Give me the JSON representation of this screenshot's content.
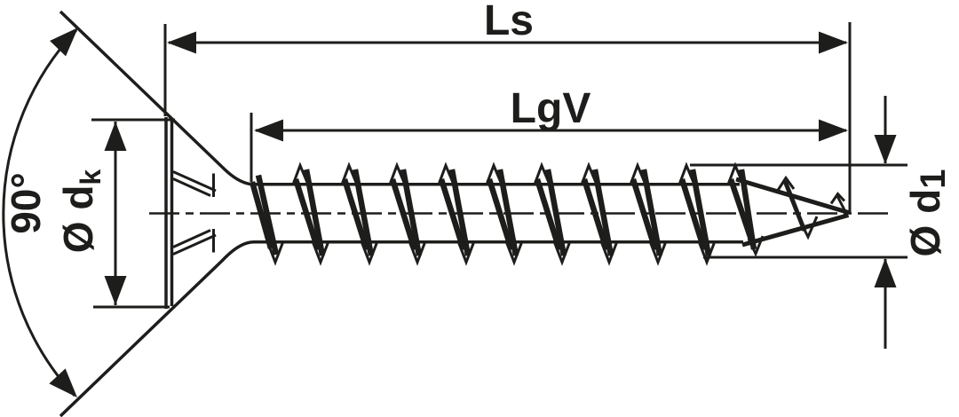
{
  "drawing": {
    "title": "Countersunk screw technical drawing with dimension annotations",
    "dim_total_length": "Ls",
    "dim_thread_length": "LgV",
    "dim_head_angle": "90°",
    "dim_head_dia_base": "Ø d",
    "dim_head_dia_sub": "k",
    "dim_core_dia_base": "Ø d",
    "dim_core_dia_sub": "1",
    "line_color": "#1d1d1b",
    "bg_color": "#ffffff"
  }
}
